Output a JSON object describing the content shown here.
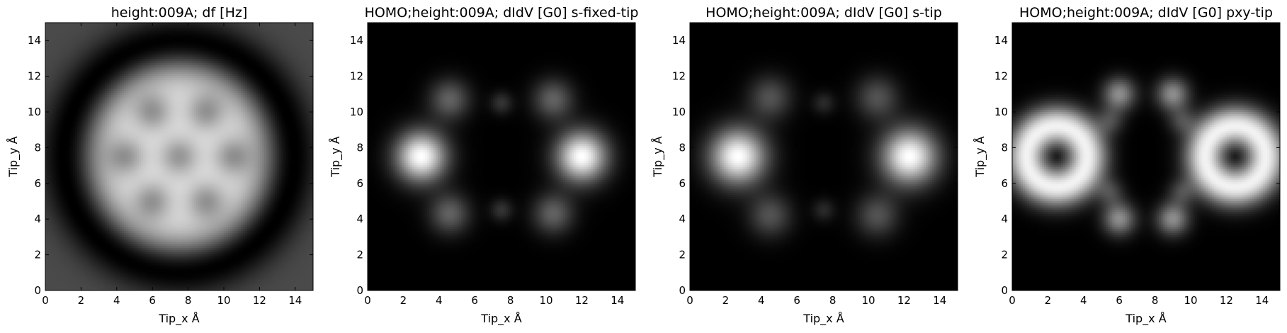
{
  "chart_data": [
    {
      "type": "heatmap",
      "title": "height:009A; df [Hz]",
      "xlabel": "Tip_x Å",
      "ylabel": "Tip_y Å",
      "xlim": [
        0,
        15
      ],
      "ylim": [
        0,
        15
      ],
      "x_ticks": [
        "0",
        "2",
        "4",
        "6",
        "8",
        "10",
        "12",
        "14"
      ],
      "y_ticks": [
        "0",
        "2",
        "4",
        "6",
        "8",
        "10",
        "12",
        "14"
      ],
      "colormap": "gray",
      "background_level": 0.29,
      "features": [
        {
          "kind": "blob",
          "x": 7.5,
          "y": 7.5,
          "rx": 5.0,
          "ry": 5.2,
          "amplitude": 0.62
        },
        {
          "kind": "dark_ring",
          "x": 7.5,
          "y": 7.5,
          "radius": 6.4,
          "width": 1.0,
          "amplitude": -0.3
        },
        {
          "kind": "spot",
          "x": 6.0,
          "y": 10.0,
          "r": 0.75,
          "amplitude": -0.32
        },
        {
          "kind": "spot",
          "x": 9.0,
          "y": 10.0,
          "r": 0.75,
          "amplitude": -0.32
        },
        {
          "kind": "spot",
          "x": 4.5,
          "y": 7.5,
          "r": 0.75,
          "amplitude": -0.32
        },
        {
          "kind": "spot",
          "x": 7.5,
          "y": 7.5,
          "r": 0.75,
          "amplitude": -0.32
        },
        {
          "kind": "spot",
          "x": 10.5,
          "y": 7.5,
          "r": 0.75,
          "amplitude": -0.32
        },
        {
          "kind": "spot",
          "x": 6.0,
          "y": 5.0,
          "r": 0.75,
          "amplitude": -0.32
        },
        {
          "kind": "spot",
          "x": 9.0,
          "y": 5.0,
          "r": 0.75,
          "amplitude": -0.32
        }
      ]
    },
    {
      "type": "heatmap",
      "title": "HOMO;height:009A; dIdV [G0] s-fixed-tip",
      "xlabel": "Tip_x Å",
      "ylabel": "Tip_y Å",
      "xlim": [
        0,
        15
      ],
      "ylim": [
        0,
        15
      ],
      "x_ticks": [
        "0",
        "2",
        "4",
        "6",
        "8",
        "10",
        "12",
        "14"
      ],
      "y_ticks": [
        "0",
        "2",
        "4",
        "6",
        "8",
        "10",
        "12",
        "14"
      ],
      "colormap": "gray",
      "background_level": 0.0,
      "features": [
        {
          "kind": "spot",
          "x": 3.0,
          "y": 7.5,
          "r": 1.0,
          "amplitude": 1.0
        },
        {
          "kind": "spot",
          "x": 12.0,
          "y": 7.5,
          "r": 1.0,
          "amplitude": 1.0
        },
        {
          "kind": "spot",
          "x": 4.6,
          "y": 10.7,
          "r": 0.8,
          "amplitude": 0.38
        },
        {
          "kind": "spot",
          "x": 10.4,
          "y": 10.7,
          "r": 0.8,
          "amplitude": 0.38
        },
        {
          "kind": "spot",
          "x": 4.6,
          "y": 4.3,
          "r": 0.8,
          "amplitude": 0.38
        },
        {
          "kind": "spot",
          "x": 10.4,
          "y": 4.3,
          "r": 0.8,
          "amplitude": 0.38
        },
        {
          "kind": "spot",
          "x": 7.5,
          "y": 10.5,
          "r": 0.45,
          "amplitude": 0.2
        },
        {
          "kind": "spot",
          "x": 7.5,
          "y": 4.5,
          "r": 0.45,
          "amplitude": 0.2
        }
      ]
    },
    {
      "type": "heatmap",
      "title": "HOMO;height:009A; dIdV [G0] s-tip",
      "xlabel": "Tip_x Å",
      "ylabel": "Tip_y Å",
      "xlim": [
        0,
        15
      ],
      "ylim": [
        0,
        15
      ],
      "x_ticks": [
        "0",
        "2",
        "4",
        "6",
        "8",
        "10",
        "12",
        "14"
      ],
      "y_ticks": [
        "0",
        "2",
        "4",
        "6",
        "8",
        "10",
        "12",
        "14"
      ],
      "colormap": "gray",
      "background_level": 0.0,
      "features": [
        {
          "kind": "spot",
          "x": 2.7,
          "y": 7.5,
          "r": 1.1,
          "amplitude": 1.0
        },
        {
          "kind": "spot",
          "x": 12.3,
          "y": 7.5,
          "r": 1.1,
          "amplitude": 1.0
        },
        {
          "kind": "spot",
          "x": 4.5,
          "y": 10.8,
          "r": 0.85,
          "amplitude": 0.32
        },
        {
          "kind": "spot",
          "x": 10.5,
          "y": 10.8,
          "r": 0.85,
          "amplitude": 0.32
        },
        {
          "kind": "spot",
          "x": 4.5,
          "y": 4.2,
          "r": 0.85,
          "amplitude": 0.32
        },
        {
          "kind": "spot",
          "x": 10.5,
          "y": 4.2,
          "r": 0.85,
          "amplitude": 0.32
        },
        {
          "kind": "spot",
          "x": 7.5,
          "y": 10.5,
          "r": 0.45,
          "amplitude": 0.16
        },
        {
          "kind": "spot",
          "x": 7.5,
          "y": 4.5,
          "r": 0.45,
          "amplitude": 0.16
        }
      ]
    },
    {
      "type": "heatmap",
      "title": "HOMO;height:009A; dIdV [G0] pxy-tip",
      "xlabel": "Tip_x Å",
      "ylabel": "Tip_y Å",
      "xlim": [
        0,
        15
      ],
      "ylim": [
        0,
        15
      ],
      "x_ticks": [
        "0",
        "2",
        "4",
        "6",
        "8",
        "10",
        "12",
        "14"
      ],
      "y_ticks": [
        "0",
        "2",
        "4",
        "6",
        "8",
        "10",
        "12",
        "14"
      ],
      "colormap": "gray",
      "background_level": 0.0,
      "features": [
        {
          "kind": "ring",
          "x": 2.5,
          "y": 7.5,
          "radius": 1.7,
          "width": 0.8,
          "amplitude": 0.95
        },
        {
          "kind": "ring",
          "x": 12.5,
          "y": 7.5,
          "radius": 1.7,
          "width": 0.8,
          "amplitude": 0.95
        },
        {
          "kind": "spot",
          "x": 6.0,
          "y": 11.0,
          "r": 0.65,
          "amplitude": 0.55
        },
        {
          "kind": "spot",
          "x": 9.0,
          "y": 11.0,
          "r": 0.65,
          "amplitude": 0.55
        },
        {
          "kind": "spot",
          "x": 6.0,
          "y": 4.0,
          "r": 0.65,
          "amplitude": 0.55
        },
        {
          "kind": "spot",
          "x": 9.0,
          "y": 4.0,
          "r": 0.65,
          "amplitude": 0.55
        },
        {
          "kind": "spot",
          "x": 5.5,
          "y": 9.5,
          "r": 0.55,
          "amplitude": 0.25
        },
        {
          "kind": "spot",
          "x": 9.5,
          "y": 9.5,
          "r": 0.55,
          "amplitude": 0.25
        },
        {
          "kind": "spot",
          "x": 5.5,
          "y": 5.5,
          "r": 0.55,
          "amplitude": 0.25
        },
        {
          "kind": "spot",
          "x": 9.5,
          "y": 5.5,
          "r": 0.55,
          "amplitude": 0.25
        }
      ]
    }
  ]
}
